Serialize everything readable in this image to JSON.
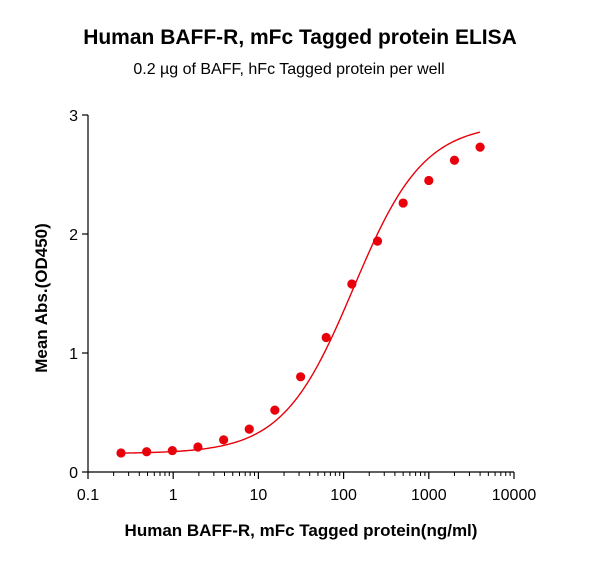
{
  "chart_data": {
    "type": "scatter",
    "title": "Human BAFF-R, mFc Tagged protein ELISA",
    "subtitle": "0.2 µg of BAFF, hFc Tagged protein per well",
    "xlabel": "Human BAFF-R, mFc Tagged protein(ng/ml)",
    "ylabel": "Mean Abs.(OD450)",
    "x_scale": "log",
    "xlim": [
      0.1,
      10000
    ],
    "ylim": [
      0,
      3
    ],
    "x_ticks": [
      "0.1",
      "1",
      "10",
      "100",
      "1000",
      "10000"
    ],
    "y_ticks": [
      "0",
      "1",
      "2",
      "3"
    ],
    "grid": false,
    "fit_curve": true,
    "colors": {
      "points": "#e8000b",
      "curve": "#e8000b",
      "axes": "#000000"
    },
    "series": [
      {
        "x": [
          0.244,
          0.488,
          0.977,
          1.95,
          3.91,
          7.81,
          15.6,
          31.3,
          62.5,
          125,
          250,
          500,
          1000,
          2000,
          4000
        ],
        "y": [
          0.16,
          0.17,
          0.18,
          0.21,
          0.27,
          0.36,
          0.52,
          0.8,
          1.13,
          1.58,
          1.94,
          2.26,
          2.45,
          2.62,
          2.73
        ]
      }
    ]
  }
}
